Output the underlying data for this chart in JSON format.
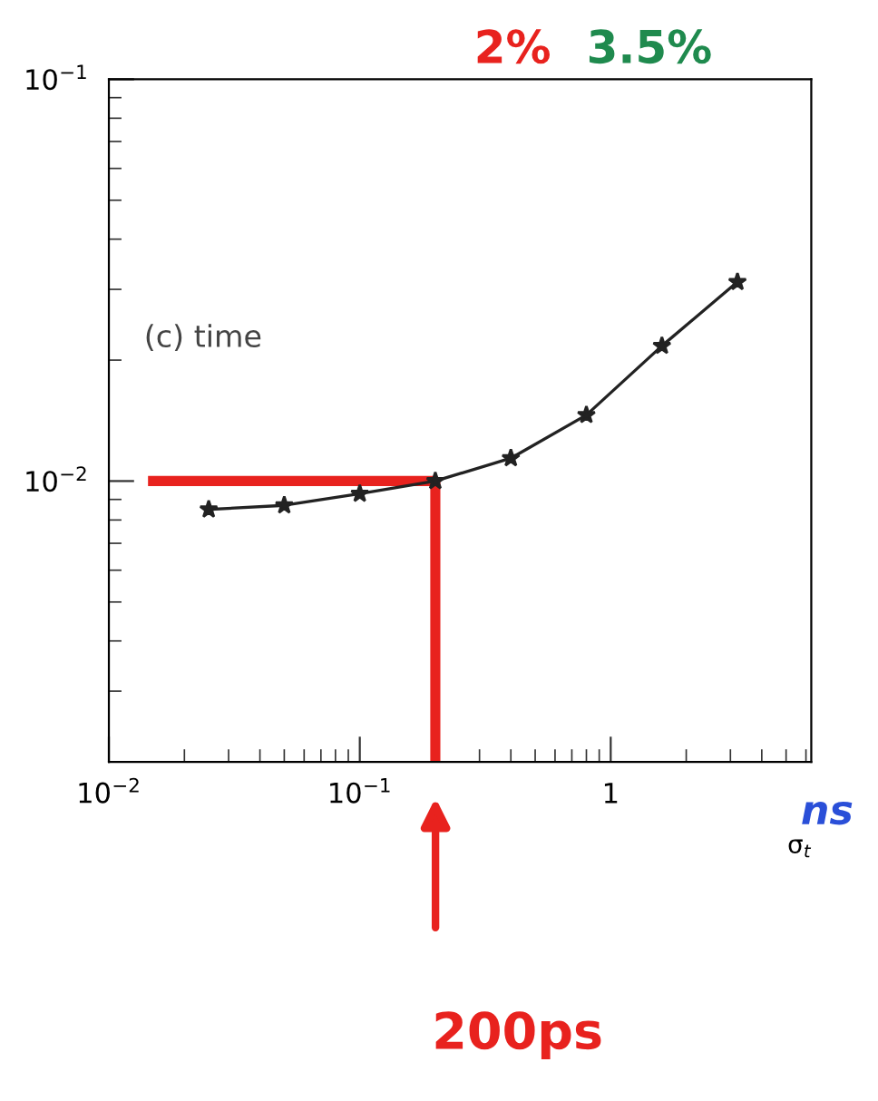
{
  "chart_data": {
    "type": "line",
    "xlabel": "σ$_{t}$",
    "log": "xy",
    "xlim": [
      0.01,
      6.3
    ],
    "ylim": [
      0.002,
      0.1
    ],
    "xticks": [
      {
        "value": 0.01,
        "label": "10$^{−2}$"
      },
      {
        "value": 0.1,
        "label": "10$^{−1}$"
      },
      1
    ],
    "yticks": [
      {
        "value": 0.01,
        "label": "10$^{−2}$"
      },
      {
        "value": 0.1,
        "label": "10$^{−1}$"
      }
    ],
    "marker": "star",
    "grid": false,
    "legend": false,
    "series": [
      {
        "color": "#222222",
        "x": [
          0.025,
          0.05,
          0.1,
          0.2,
          0.4,
          0.8,
          1.6,
          3.2
        ],
        "values": [
          0.0085,
          0.0087,
          0.0093,
          0.01,
          0.0114,
          0.0146,
          0.0217,
          0.0313
        ]
      },
      {
        "type": "line",
        "color": "#e8221e",
        "marker": "none",
        "x": [
          0.015,
          0.2,
          0.2
        ],
        "values": [
          0.01,
          0.01,
          0.002
        ]
      }
    ],
    "annotations": [
      "(c) time",
      "200ps",
      "ns",
      "2%",
      "3.5%"
    ]
  }
}
